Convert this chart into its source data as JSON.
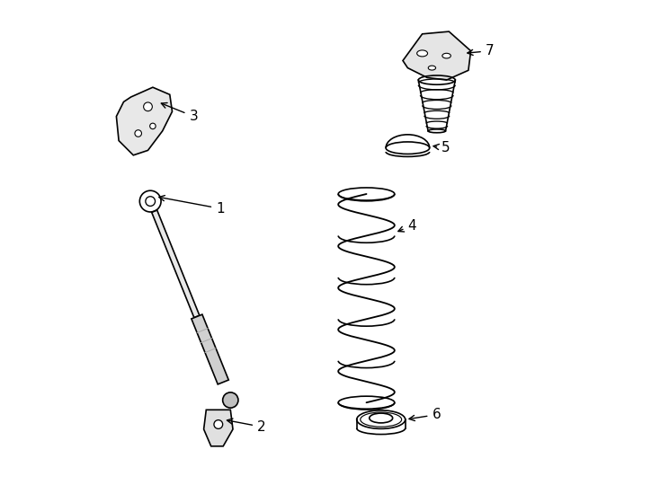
{
  "bg_color": "#ffffff",
  "line_color": "#000000",
  "label_color": "#000000",
  "fig_width": 7.34,
  "fig_height": 5.4,
  "dpi": 100
}
